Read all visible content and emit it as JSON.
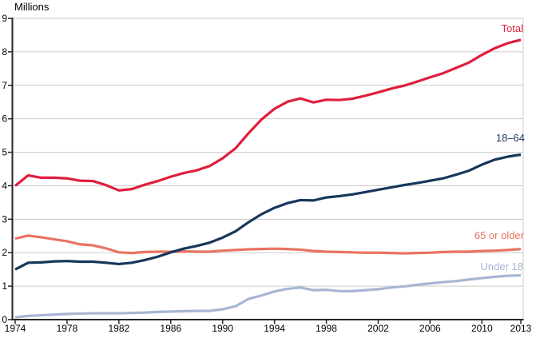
{
  "chart_data": {
    "type": "line",
    "title": "",
    "ylabel": "Millions",
    "xlabel": "",
    "grid": "horizontal",
    "legend_position": "inline-right",
    "ylim": [
      0,
      9
    ],
    "y_ticks": [
      0,
      1,
      2,
      3,
      4,
      5,
      6,
      7,
      8,
      9
    ],
    "x_range": [
      1974,
      2013
    ],
    "x_tick_labels": [
      "1974",
      "1978",
      "1982",
      "1986",
      "1990",
      "1994",
      "1998",
      "2002",
      "2006",
      "2010",
      "2013"
    ],
    "x_tick_years": [
      1974,
      1978,
      1982,
      1986,
      1990,
      1994,
      1998,
      2002,
      2006,
      2010,
      2013
    ],
    "x": [
      1974,
      1975,
      1976,
      1977,
      1978,
      1979,
      1980,
      1981,
      1982,
      1983,
      1984,
      1985,
      1986,
      1987,
      1988,
      1989,
      1990,
      1991,
      1992,
      1993,
      1994,
      1995,
      1996,
      1997,
      1998,
      1999,
      2000,
      2001,
      2002,
      2003,
      2004,
      2005,
      2006,
      2007,
      2008,
      2009,
      2010,
      2011,
      2012,
      2013
    ],
    "series": [
      {
        "name": "Total",
        "color": "#e01e3c",
        "values": [
          4.0,
          4.31,
          4.24,
          4.24,
          4.22,
          4.15,
          4.14,
          4.02,
          3.86,
          3.9,
          4.03,
          4.14,
          4.27,
          4.38,
          4.46,
          4.59,
          4.82,
          5.12,
          5.57,
          5.98,
          6.3,
          6.51,
          6.61,
          6.49,
          6.57,
          6.56,
          6.6,
          6.69,
          6.79,
          6.9,
          6.99,
          7.11,
          7.24,
          7.36,
          7.52,
          7.68,
          7.91,
          8.11,
          8.26,
          8.36
        ]
      },
      {
        "name": "18–64",
        "color": "#16365c",
        "values": [
          1.5,
          1.7,
          1.71,
          1.74,
          1.75,
          1.73,
          1.73,
          1.7,
          1.66,
          1.7,
          1.78,
          1.88,
          2.01,
          2.12,
          2.2,
          2.3,
          2.45,
          2.64,
          2.91,
          3.15,
          3.34,
          3.48,
          3.57,
          3.56,
          3.65,
          3.69,
          3.74,
          3.81,
          3.88,
          3.95,
          4.02,
          4.08,
          4.15,
          4.22,
          4.33,
          4.45,
          4.63,
          4.78,
          4.87,
          4.93
        ]
      },
      {
        "name": "65 or older",
        "color": "#ea7364",
        "values": [
          2.42,
          2.51,
          2.46,
          2.4,
          2.34,
          2.25,
          2.22,
          2.13,
          2.01,
          1.99,
          2.02,
          2.03,
          2.03,
          2.04,
          2.03,
          2.03,
          2.06,
          2.08,
          2.1,
          2.11,
          2.12,
          2.11,
          2.09,
          2.05,
          2.03,
          2.02,
          2.01,
          2.0,
          2.0,
          1.99,
          1.98,
          1.99,
          2.0,
          2.02,
          2.03,
          2.03,
          2.05,
          2.06,
          2.08,
          2.11
        ]
      },
      {
        "name": "Under 18",
        "color": "#a7b6d4",
        "values": [
          0.07,
          0.11,
          0.13,
          0.15,
          0.17,
          0.18,
          0.19,
          0.19,
          0.19,
          0.2,
          0.21,
          0.23,
          0.24,
          0.25,
          0.26,
          0.26,
          0.31,
          0.4,
          0.62,
          0.72,
          0.84,
          0.92,
          0.96,
          0.88,
          0.89,
          0.85,
          0.85,
          0.88,
          0.91,
          0.96,
          0.99,
          1.04,
          1.08,
          1.12,
          1.15,
          1.2,
          1.24,
          1.28,
          1.31,
          1.32
        ]
      }
    ],
    "colors": {
      "gridline": "#cccccc",
      "axis": "#262626",
      "tick_text": "#000000"
    }
  }
}
